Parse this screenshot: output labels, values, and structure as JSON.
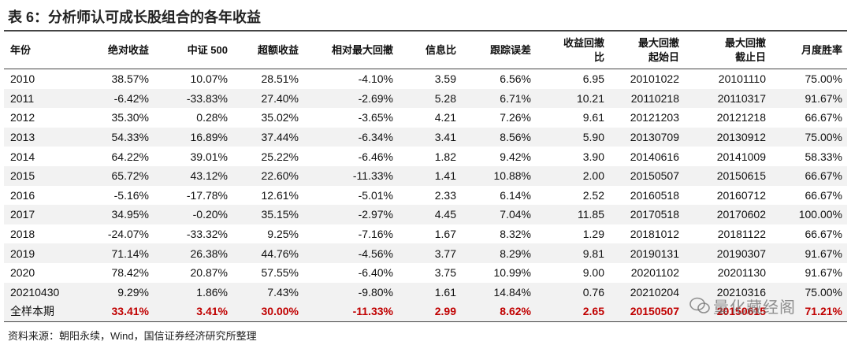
{
  "title": "表 6：分析师认可成长股组合的各年收益",
  "table": {
    "header": [
      "年份",
      "绝对收益",
      "中证 500",
      "超额收益",
      "相对最大回撤",
      "信息比",
      "跟踪误差",
      "收益回撤\n比",
      "最大回撤\n起始日",
      "最大回撤\n截止日",
      "月度胜率"
    ],
    "rows": [
      [
        "2010",
        "38.57%",
        "10.07%",
        "28.51%",
        "-4.10%",
        "3.59",
        "6.56%",
        "6.95",
        "20101022",
        "20101110",
        "75.00%"
      ],
      [
        "2011",
        "-6.42%",
        "-33.83%",
        "27.40%",
        "-2.69%",
        "5.28",
        "6.71%",
        "10.21",
        "20110218",
        "20110317",
        "91.67%"
      ],
      [
        "2012",
        "35.30%",
        "0.28%",
        "35.02%",
        "-3.65%",
        "4.21",
        "7.26%",
        "9.61",
        "20121203",
        "20121218",
        "66.67%"
      ],
      [
        "2013",
        "54.33%",
        "16.89%",
        "37.44%",
        "-6.34%",
        "3.41",
        "8.56%",
        "5.90",
        "20130709",
        "20130912",
        "75.00%"
      ],
      [
        "2014",
        "64.22%",
        "39.01%",
        "25.22%",
        "-6.46%",
        "1.82",
        "9.42%",
        "3.90",
        "20140616",
        "20141009",
        "58.33%"
      ],
      [
        "2015",
        "65.72%",
        "43.12%",
        "22.60%",
        "-11.33%",
        "1.41",
        "10.88%",
        "2.00",
        "20150507",
        "20150615",
        "66.67%"
      ],
      [
        "2016",
        "-5.16%",
        "-17.78%",
        "12.61%",
        "-5.01%",
        "2.33",
        "6.14%",
        "2.52",
        "20160518",
        "20160712",
        "66.67%"
      ],
      [
        "2017",
        "34.95%",
        "-0.20%",
        "35.15%",
        "-2.97%",
        "4.45",
        "7.04%",
        "11.85",
        "20170518",
        "20170602",
        "100.00%"
      ],
      [
        "2018",
        "-24.07%",
        "-33.32%",
        "9.25%",
        "-7.16%",
        "1.67",
        "8.32%",
        "1.29",
        "20181012",
        "20181122",
        "66.67%"
      ],
      [
        "2019",
        "71.14%",
        "26.38%",
        "44.76%",
        "-4.56%",
        "3.77",
        "8.29%",
        "9.81",
        "20190131",
        "20190307",
        "91.67%"
      ],
      [
        "2020",
        "78.42%",
        "20.87%",
        "57.55%",
        "-6.40%",
        "3.75",
        "10.99%",
        "9.00",
        "20201102",
        "20201130",
        "91.67%"
      ],
      [
        "20210430",
        "9.29%",
        "1.86%",
        "7.43%",
        "-9.80%",
        "1.61",
        "14.84%",
        "0.76",
        "20210204",
        "20210316",
        "75.00%"
      ]
    ],
    "summary": [
      "全样本期",
      "33.41%",
      "3.41%",
      "30.00%",
      "-11.33%",
      "2.99",
      "8.62%",
      "2.65",
      "20150507",
      "20150615",
      "71.21%"
    ]
  },
  "source": "资料来源：朝阳永续，Wind，国信证券经济研究所整理",
  "watermark": "量化藏经阁"
}
